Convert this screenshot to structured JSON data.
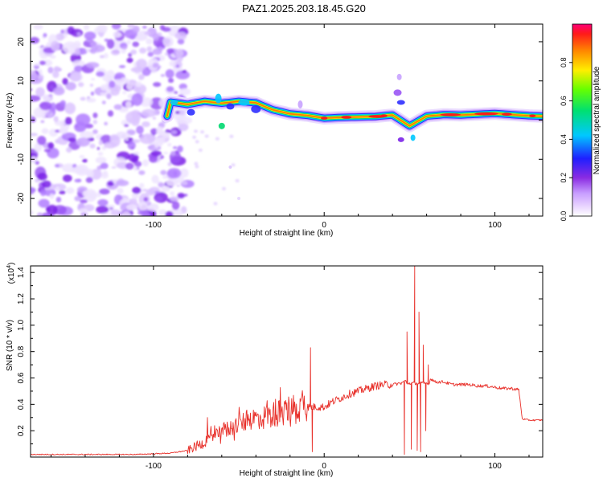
{
  "title": "PAZ1.2025.203.18.45.G20",
  "chart_data": [
    {
      "type": "heatmap",
      "xlabel": "Height of straight line (km)",
      "ylabel": "Frequency (Hz)",
      "xlim": [
        -172,
        128
      ],
      "ylim": [
        -24.5,
        24.5
      ],
      "xticks": [
        -100,
        0,
        100
      ],
      "yticks": [
        -20,
        -10,
        0,
        10,
        20
      ],
      "colorbar": {
        "label": "Normalized spectral amplitude",
        "range": [
          0,
          1
        ],
        "ticks": [
          0.0,
          0.2,
          0.4,
          0.6,
          0.8
        ],
        "tick_labels": [
          "0.0",
          "0.2",
          "0.4",
          "0.6",
          "0.8"
        ]
      },
      "ridge": [
        {
          "x": -90,
          "f": 4.6
        },
        {
          "x": -80,
          "f": 4.0
        },
        {
          "x": -70,
          "f": 4.8
        },
        {
          "x": -60,
          "f": 4.3
        },
        {
          "x": -50,
          "f": 4.8
        },
        {
          "x": -40,
          "f": 4.4
        },
        {
          "x": -30,
          "f": 2.6
        },
        {
          "x": -20,
          "f": 1.6
        },
        {
          "x": -10,
          "f": 1.2
        },
        {
          "x": 0,
          "f": 0.5
        },
        {
          "x": 10,
          "f": 0.7
        },
        {
          "x": 20,
          "f": 0.8
        },
        {
          "x": 30,
          "f": 0.9
        },
        {
          "x": 40,
          "f": 1.3
        },
        {
          "x": 50,
          "f": -1.5
        },
        {
          "x": 60,
          "f": 1.0
        },
        {
          "x": 70,
          "f": 1.4
        },
        {
          "x": 80,
          "f": 1.3
        },
        {
          "x": 90,
          "f": 1.5
        },
        {
          "x": 100,
          "f": 1.7
        },
        {
          "x": 110,
          "f": 1.4
        },
        {
          "x": 120,
          "f": 1.1
        },
        {
          "x": 128,
          "f": 1.0
        }
      ],
      "noise_region": {
        "x_range": [
          -172,
          -80
        ],
        "f_range": [
          -24.5,
          24.5
        ]
      }
    },
    {
      "type": "line",
      "xlabel": "Height of straight line (km)",
      "ylabel": "SNR (10 * v/v)",
      "y_multiplier": "(x10",
      "y_multiplier_exp": "4",
      "y_multiplier_close": ")",
      "xlim": [
        -172,
        128
      ],
      "ylim": [
        0,
        1.45
      ],
      "xticks": [
        -100,
        0,
        100
      ],
      "yticks": [
        0.2,
        0.4,
        0.6,
        0.8,
        1.0,
        1.2,
        1.4
      ],
      "ytick_labels": [
        "0.2",
        "0.4",
        "0.6",
        "0.8",
        "1.0",
        "1.2",
        "1.4"
      ],
      "series": [
        {
          "color": "#e8302a",
          "x": [
            -172,
            -150,
            -130,
            -110,
            -90,
            -80,
            -72,
            -65,
            -60,
            -55,
            -50,
            -45,
            -40,
            -35,
            -30,
            -25,
            -20,
            -15,
            -10,
            -8,
            -6,
            -4,
            0,
            5,
            10,
            15,
            20,
            25,
            30,
            35,
            40,
            45,
            48,
            50,
            52,
            54,
            56,
            58,
            60,
            62,
            65,
            70,
            75,
            80,
            85,
            90,
            95,
            100,
            105,
            110,
            114,
            116,
            120,
            128
          ],
          "y": [
            0.02,
            0.02,
            0.02,
            0.02,
            0.03,
            0.05,
            0.1,
            0.16,
            0.2,
            0.22,
            0.25,
            0.28,
            0.3,
            0.3,
            0.32,
            0.34,
            0.36,
            0.38,
            0.4,
            0.6,
            0.3,
            0.38,
            0.38,
            0.42,
            0.45,
            0.48,
            0.5,
            0.52,
            0.54,
            0.55,
            0.55,
            0.56,
            0.58,
            0.98,
            0.2,
            1.42,
            0.1,
            0.9,
            0.2,
            0.6,
            0.57,
            0.57,
            0.55,
            0.55,
            0.55,
            0.54,
            0.54,
            0.53,
            0.52,
            0.52,
            0.51,
            0.29,
            0.28,
            0.28
          ],
          "spikes": [
            {
              "x": -8,
              "y": 0.83
            },
            {
              "x": -7,
              "y": 0.04
            },
            {
              "x": 47,
              "y": 0.02
            },
            {
              "x": 48.5,
              "y": 0.95
            },
            {
              "x": 51,
              "y": 0.06
            },
            {
              "x": 53,
              "y": 1.45
            },
            {
              "x": 54.5,
              "y": 0.05
            },
            {
              "x": 55.5,
              "y": 1.1
            },
            {
              "x": 56.5,
              "y": 0.04
            },
            {
              "x": 58,
              "y": 0.85
            },
            {
              "x": 59.5,
              "y": 0.2
            },
            {
              "x": 61,
              "y": 0.7
            }
          ]
        }
      ]
    }
  ]
}
